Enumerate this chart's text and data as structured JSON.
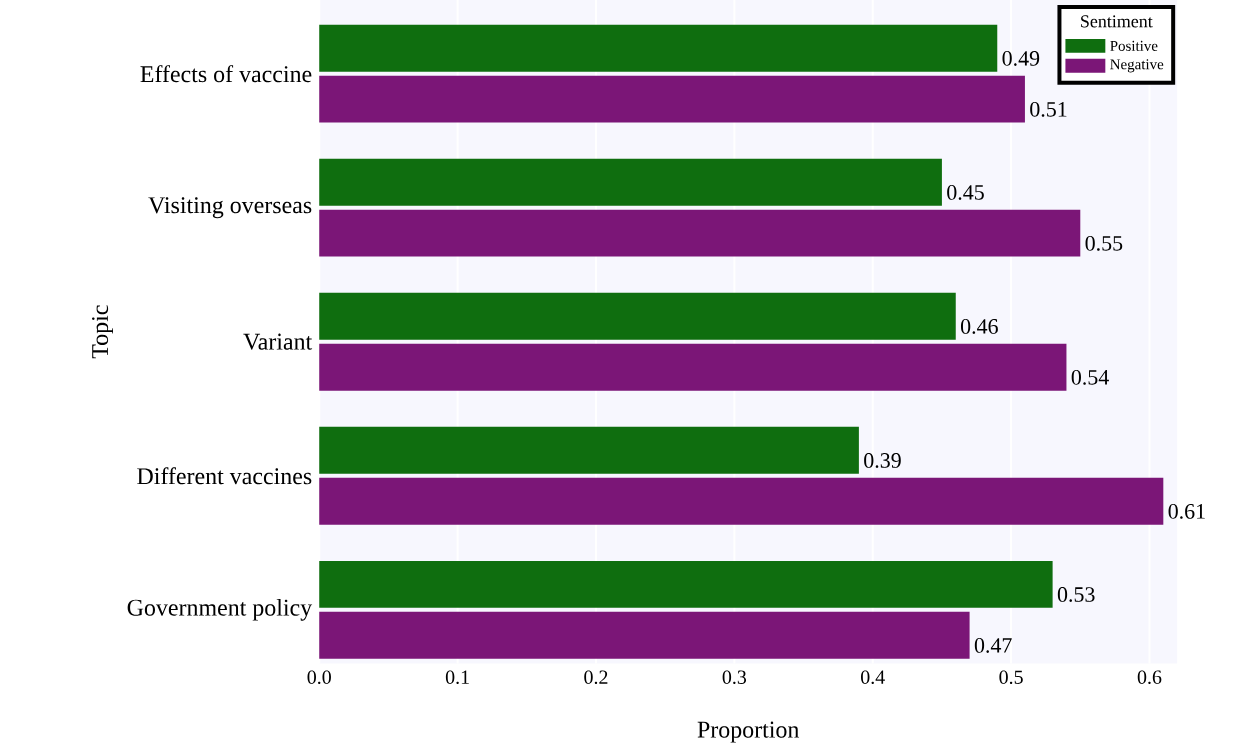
{
  "chart_data": {
    "type": "bar",
    "orientation": "horizontal",
    "xlabel": "Proportion",
    "ylabel": "Topic",
    "legend_title": "Sentiment",
    "legend": "top right",
    "grid": "x",
    "data_labels": true,
    "categories": [
      "Effects of vaccine",
      "Visiting overseas",
      "Variant",
      "Different vaccines",
      "Government policy"
    ],
    "series": [
      {
        "name": "Positive",
        "color": "#0f6e0f",
        "values": [
          0.49,
          0.45,
          0.46,
          0.39,
          0.53
        ]
      },
      {
        "name": "Negative",
        "color": "#7b1677",
        "values": [
          0.51,
          0.55,
          0.54,
          0.61,
          0.47
        ]
      }
    ],
    "xlim": [
      0,
      0.62
    ],
    "xticks": [
      {
        "value": 0,
        "label": "0.0"
      },
      0.1,
      0.2,
      0.3,
      0.4,
      0.5,
      0.6
    ]
  }
}
